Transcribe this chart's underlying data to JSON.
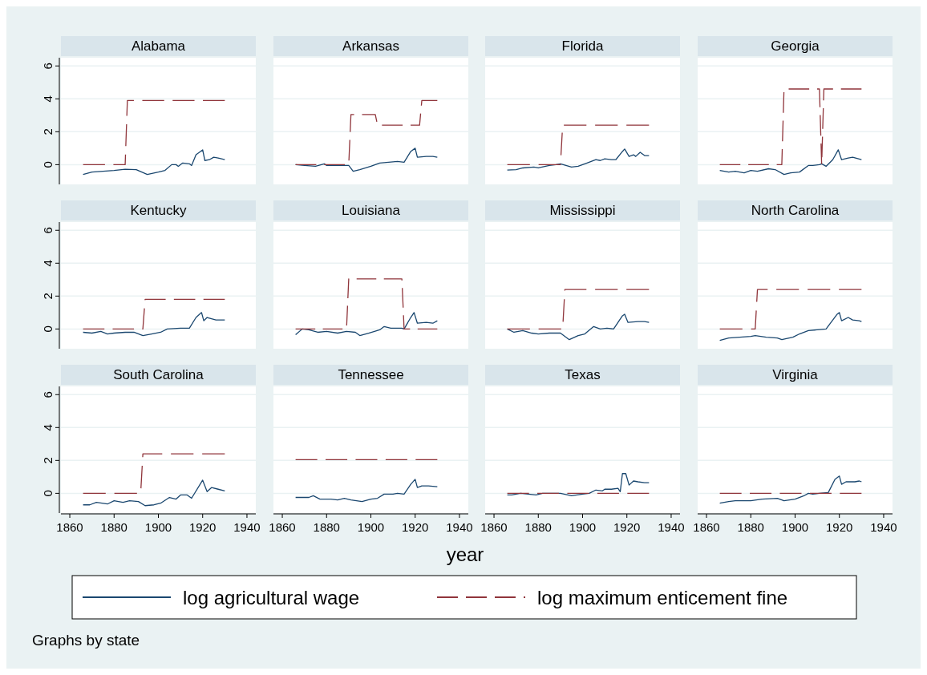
{
  "chart_data": [
    {
      "type": "line",
      "title": "Alabama",
      "legend": "bottom",
      "annotations": [
        "Graphs by state"
      ],
      "xlim": [
        1856,
        1944
      ],
      "xticks": [
        1860,
        1880,
        1900,
        1920,
        1940
      ],
      "ylim": [
        -1.2,
        6.5
      ],
      "yticks": [
        0,
        2,
        4,
        6
      ],
      "grid": "y",
      "tick_labels": "y",
      "series": [
        {
          "name": "log agricultural wage",
          "color": "#1a476f",
          "line_style": "solid",
          "x": [
            1866,
            1870,
            1875,
            1880,
            1885,
            1890,
            1895,
            1900,
            1903,
            1906,
            1908,
            1909,
            1911,
            1914,
            1915,
            1917,
            1920,
            1921,
            1923,
            1925,
            1927,
            1930
          ],
          "values": [
            -0.6,
            -0.45,
            -0.4,
            -0.35,
            -0.28,
            -0.3,
            -0.6,
            -0.45,
            -0.35,
            0,
            0,
            -0.1,
            0.1,
            0.05,
            -0.05,
            0.6,
            0.9,
            0.25,
            0.3,
            0.45,
            0.4,
            0.3
          ]
        },
        {
          "name": "log maximum enticement fine",
          "color": "#90353b",
          "line_style": "dashed",
          "x": [
            1866,
            1885,
            1886,
            1930
          ],
          "values": [
            0,
            0,
            3.9,
            3.9
          ]
        }
      ]
    },
    {
      "type": "line",
      "title": "Arkansas",
      "xlim": [
        1856,
        1944
      ],
      "xticks": [
        1860,
        1880,
        1900,
        1920,
        1940
      ],
      "ylim": [
        -1.2,
        6.5
      ],
      "yticks": [
        0,
        2,
        4,
        6
      ],
      "grid": "y",
      "tick_labels": false,
      "series": [
        {
          "name": "log agricultural wage",
          "color": "#1a476f",
          "line_style": "solid",
          "x": [
            1866,
            1870,
            1875,
            1879,
            1880,
            1885,
            1890,
            1892,
            1895,
            1900,
            1904,
            1908,
            1912,
            1915,
            1918,
            1920,
            1921,
            1925,
            1928,
            1930
          ],
          "values": [
            0,
            -0.05,
            -0.1,
            0.05,
            -0.05,
            -0.05,
            -0.05,
            -0.4,
            -0.3,
            -0.1,
            0.1,
            0.15,
            0.2,
            0.15,
            0.8,
            1.0,
            0.45,
            0.5,
            0.5,
            0.45
          ]
        },
        {
          "name": "log maximum enticement fine",
          "color": "#90353b",
          "line_style": "dashed",
          "x": [
            1866,
            1890,
            1891,
            1902,
            1903,
            1922,
            1923,
            1930
          ],
          "values": [
            0,
            0,
            3.05,
            3.05,
            2.4,
            2.4,
            3.9,
            3.9
          ]
        }
      ]
    },
    {
      "type": "line",
      "title": "Florida",
      "xlim": [
        1856,
        1944
      ],
      "xticks": [
        1860,
        1880,
        1900,
        1920,
        1940
      ],
      "ylim": [
        -1.2,
        6.5
      ],
      "yticks": [
        0,
        2,
        4,
        6
      ],
      "grid": "y",
      "tick_labels": false,
      "series": [
        {
          "name": "log agricultural wage",
          "color": "#1a476f",
          "line_style": "solid",
          "x": [
            1866,
            1870,
            1873,
            1878,
            1880,
            1885,
            1888,
            1890,
            1895,
            1898,
            1902,
            1906,
            1908,
            1910,
            1913,
            1915,
            1918,
            1919,
            1921,
            1923,
            1924,
            1926,
            1928,
            1930
          ],
          "values": [
            -0.33,
            -0.3,
            -0.2,
            -0.15,
            -0.2,
            -0.05,
            0,
            0.05,
            -0.15,
            -0.1,
            0.1,
            0.3,
            0.25,
            0.35,
            0.3,
            0.3,
            0.8,
            0.95,
            0.5,
            0.6,
            0.5,
            0.75,
            0.55,
            0.55
          ]
        },
        {
          "name": "log maximum enticement fine",
          "color": "#90353b",
          "line_style": "dashed",
          "x": [
            1866,
            1890,
            1891,
            1930
          ],
          "values": [
            0,
            0,
            2.4,
            2.4
          ]
        }
      ]
    },
    {
      "type": "line",
      "title": "Georgia",
      "xlim": [
        1856,
        1944
      ],
      "xticks": [
        1860,
        1880,
        1900,
        1920,
        1940
      ],
      "ylim": [
        -1.2,
        6.5
      ],
      "yticks": [
        0,
        2,
        4,
        6
      ],
      "grid": "y",
      "tick_labels": false,
      "series": [
        {
          "name": "log agricultural wage",
          "color": "#1a476f",
          "line_style": "solid",
          "x": [
            1866,
            1870,
            1873,
            1877,
            1880,
            1883,
            1888,
            1891,
            1895,
            1898,
            1902,
            1906,
            1908,
            1911,
            1912,
            1914,
            1917,
            1919.5,
            1921,
            1924,
            1926,
            1930
          ],
          "values": [
            -0.35,
            -0.45,
            -0.4,
            -0.5,
            -0.35,
            -0.4,
            -0.25,
            -0.3,
            -0.6,
            -0.5,
            -0.45,
            -0.05,
            -0.05,
            0,
            0.05,
            -0.1,
            0.3,
            0.9,
            0.3,
            0.4,
            0.45,
            0.3
          ]
        },
        {
          "name": "log maximum enticement fine",
          "color": "#90353b",
          "line_style": "dashed",
          "x": [
            1866,
            1894,
            1895,
            1911,
            1912,
            1913,
            1930
          ],
          "values": [
            0,
            0,
            4.6,
            4.6,
            0,
            4.6,
            4.6
          ]
        }
      ]
    },
    {
      "type": "line",
      "title": "Kentucky",
      "xlim": [
        1856,
        1944
      ],
      "xticks": [
        1860,
        1880,
        1900,
        1920,
        1940
      ],
      "ylim": [
        -1.2,
        6.5
      ],
      "yticks": [
        0,
        2,
        4,
        6
      ],
      "grid": "y",
      "tick_labels": "y",
      "series": [
        {
          "name": "log agricultural wage",
          "color": "#1a476f",
          "line_style": "solid",
          "x": [
            1866,
            1870,
            1874,
            1877,
            1880,
            1885,
            1889,
            1893,
            1897,
            1901,
            1904,
            1910,
            1914,
            1917,
            1919.5,
            1920.5,
            1922,
            1926,
            1930
          ],
          "values": [
            -0.2,
            -0.25,
            -0.15,
            -0.3,
            -0.25,
            -0.2,
            -0.2,
            -0.4,
            -0.3,
            -0.2,
            0,
            0.05,
            0.05,
            0.7,
            1.0,
            0.5,
            0.7,
            0.55,
            0.55
          ]
        },
        {
          "name": "log maximum enticement fine",
          "color": "#90353b",
          "line_style": "dashed",
          "x": [
            1866,
            1893,
            1894,
            1930
          ],
          "values": [
            0,
            0,
            1.8,
            1.8
          ]
        }
      ]
    },
    {
      "type": "line",
      "title": "Louisiana",
      "xlim": [
        1856,
        1944
      ],
      "xticks": [
        1860,
        1880,
        1900,
        1920,
        1940
      ],
      "ylim": [
        -1.2,
        6.5
      ],
      "yticks": [
        0,
        2,
        4,
        6
      ],
      "grid": "y",
      "tick_labels": false,
      "series": [
        {
          "name": "log agricultural wage",
          "color": "#1a476f",
          "line_style": "solid",
          "x": [
            1866,
            1869,
            1872,
            1876,
            1880,
            1885,
            1889,
            1893,
            1895,
            1899,
            1904,
            1906,
            1909,
            1914,
            1915,
            1918,
            1919.5,
            1921,
            1925,
            1928,
            1930
          ],
          "values": [
            -0.35,
            0,
            -0.05,
            -0.2,
            -0.15,
            -0.25,
            -0.15,
            -0.2,
            -0.4,
            -0.25,
            -0.05,
            0.15,
            0.05,
            0.05,
            0,
            0.7,
            1.0,
            0.35,
            0.4,
            0.35,
            0.5
          ]
        },
        {
          "name": "log maximum enticement fine",
          "color": "#90353b",
          "line_style": "dashed",
          "x": [
            1866,
            1889,
            1890,
            1914,
            1915,
            1930
          ],
          "values": [
            0,
            0,
            3.05,
            3.05,
            0,
            0
          ]
        }
      ]
    },
    {
      "type": "line",
      "title": "Mississippi",
      "xlim": [
        1856,
        1944
      ],
      "xticks": [
        1860,
        1880,
        1900,
        1920,
        1940
      ],
      "ylim": [
        -1.2,
        6.5
      ],
      "yticks": [
        0,
        2,
        4,
        6
      ],
      "grid": "y",
      "tick_labels": false,
      "series": [
        {
          "name": "log agricultural wage",
          "color": "#1a476f",
          "line_style": "solid",
          "x": [
            1866,
            1869,
            1873,
            1877,
            1880,
            1885,
            1890,
            1894,
            1898,
            1901,
            1905,
            1908,
            1911,
            1914,
            1918,
            1919,
            1920.5,
            1925,
            1928,
            1930
          ],
          "values": [
            0,
            -0.2,
            -0.1,
            -0.25,
            -0.3,
            -0.25,
            -0.25,
            -0.65,
            -0.4,
            -0.3,
            0.15,
            0,
            0.05,
            0,
            0.8,
            0.9,
            0.4,
            0.45,
            0.45,
            0.4
          ]
        },
        {
          "name": "log maximum enticement fine",
          "color": "#90353b",
          "line_style": "dashed",
          "x": [
            1866,
            1891,
            1892,
            1930
          ],
          "values": [
            0,
            0,
            2.4,
            2.4
          ]
        }
      ]
    },
    {
      "type": "line",
      "title": "North Carolina",
      "xlim": [
        1856,
        1944
      ],
      "xticks": [
        1860,
        1880,
        1900,
        1920,
        1940
      ],
      "ylim": [
        -1.2,
        6.5
      ],
      "yticks": [
        0,
        2,
        4,
        6
      ],
      "grid": "y",
      "tick_labels": false,
      "series": [
        {
          "name": "log agricultural wage",
          "color": "#1a476f",
          "line_style": "solid",
          "x": [
            1866,
            1870,
            1875,
            1880,
            1882,
            1887,
            1892,
            1894,
            1899,
            1902,
            1906,
            1910,
            1914,
            1919,
            1920,
            1921,
            1924,
            1926,
            1929,
            1930
          ],
          "values": [
            -0.7,
            -0.55,
            -0.5,
            -0.45,
            -0.4,
            -0.5,
            -0.55,
            -0.65,
            -0.5,
            -0.3,
            -0.1,
            -0.05,
            0,
            0.9,
            1.0,
            0.5,
            0.7,
            0.55,
            0.5,
            0.45
          ]
        },
        {
          "name": "log maximum enticement fine",
          "color": "#90353b",
          "line_style": "dashed",
          "x": [
            1866,
            1882,
            1883,
            1930
          ],
          "values": [
            0,
            0,
            2.4,
            2.4
          ]
        }
      ]
    },
    {
      "type": "line",
      "title": "South Carolina",
      "xlim": [
        1856,
        1944
      ],
      "xticks": [
        1860,
        1880,
        1900,
        1920,
        1940
      ],
      "ylim": [
        -1.2,
        6.5
      ],
      "yticks": [
        0,
        2,
        4,
        6
      ],
      "grid": "y",
      "series": [
        {
          "name": "log agricultural wage",
          "color": "#1a476f",
          "line_style": "solid",
          "x": [
            1866,
            1869,
            1872,
            1877,
            1880,
            1884,
            1887,
            1891,
            1894,
            1898,
            1901,
            1905,
            1908,
            1910,
            1913,
            1915,
            1920,
            1922,
            1924,
            1927,
            1930
          ],
          "values": [
            -0.7,
            -0.7,
            -0.55,
            -0.65,
            -0.45,
            -0.55,
            -0.45,
            -0.5,
            -0.75,
            -0.7,
            -0.6,
            -0.25,
            -0.35,
            -0.1,
            -0.1,
            -0.3,
            0.8,
            0.1,
            0.35,
            0.25,
            0.15
          ]
        },
        {
          "name": "log maximum enticement fine",
          "color": "#90353b",
          "line_style": "dashed",
          "x": [
            1866,
            1892,
            1893,
            1930
          ],
          "values": [
            0,
            0,
            2.4,
            2.4
          ]
        }
      ]
    },
    {
      "type": "line",
      "title": "Tennessee",
      "xlabel": "year",
      "xlim": [
        1856,
        1944
      ],
      "xticks": [
        1860,
        1880,
        1900,
        1920,
        1940
      ],
      "ylim": [
        -1.2,
        6.5
      ],
      "yticks": [
        0,
        2,
        4,
        6
      ],
      "grid": "y",
      "tick_labels": "x",
      "series": [
        {
          "name": "log agricultural wage",
          "color": "#1a476f",
          "line_style": "solid",
          "x": [
            1866,
            1872,
            1874,
            1877,
            1882,
            1885,
            1888,
            1891,
            1896,
            1900,
            1903,
            1906,
            1910,
            1912,
            1915,
            1918,
            1920,
            1921,
            1923,
            1926,
            1930
          ],
          "values": [
            -0.25,
            -0.25,
            -0.15,
            -0.35,
            -0.35,
            -0.4,
            -0.3,
            -0.4,
            -0.5,
            -0.35,
            -0.3,
            -0.05,
            -0.05,
            0,
            -0.05,
            0.55,
            0.85,
            0.35,
            0.45,
            0.45,
            0.4
          ]
        },
        {
          "name": "log maximum enticement fine",
          "color": "#90353b",
          "line_style": "dashed",
          "x": [
            1866,
            1930
          ],
          "values": [
            2.05,
            2.05
          ]
        }
      ]
    },
    {
      "type": "line",
      "title": "Texas",
      "xlim": [
        1856,
        1944
      ],
      "xticks": [
        1860,
        1880,
        1900,
        1920,
        1940
      ],
      "ylim": [
        -1.2,
        6.5
      ],
      "yticks": [
        0,
        2,
        4,
        6
      ],
      "grid": "y",
      "tick_labels": "x",
      "series": [
        {
          "name": "log agricultural wage",
          "color": "#1a476f",
          "line_style": "solid",
          "x": [
            1866,
            1868,
            1872,
            1879,
            1882,
            1890,
            1895,
            1900,
            1903,
            1906,
            1909,
            1910,
            1913,
            1916,
            1917,
            1918,
            1919.5,
            1921,
            1923,
            1925,
            1928,
            1930
          ],
          "values": [
            -0.1,
            -0.1,
            0,
            -0.1,
            0,
            0,
            -0.15,
            -0.05,
            0,
            0.2,
            0.15,
            0.25,
            0.25,
            0.3,
            0.1,
            1.2,
            1.2,
            0.5,
            0.75,
            0.7,
            0.65,
            0.65
          ]
        },
        {
          "name": "log maximum enticement fine",
          "color": "#90353b",
          "line_style": "dashed",
          "x": [
            1866,
            1930
          ],
          "values": [
            0,
            0
          ]
        }
      ]
    },
    {
      "type": "line",
      "title": "Virginia",
      "xlim": [
        1856,
        1944
      ],
      "xticks": [
        1860,
        1880,
        1900,
        1920,
        1940
      ],
      "ylim": [
        -1.2,
        6.5
      ],
      "yticks": [
        0,
        2,
        4,
        6
      ],
      "grid": "y",
      "tick_labels": "x",
      "series": [
        {
          "name": "log agricultural wage",
          "color": "#1a476f",
          "line_style": "solid",
          "x": [
            1866,
            1870,
            1873,
            1880,
            1885,
            1892,
            1895,
            1900,
            1904,
            1906,
            1908,
            1911,
            1915,
            1918,
            1920,
            1921,
            1923,
            1927,
            1929,
            1930
          ],
          "values": [
            -0.6,
            -0.5,
            -0.45,
            -0.45,
            -0.35,
            -0.3,
            -0.45,
            -0.35,
            -0.15,
            0,
            -0.05,
            0,
            0.05,
            0.85,
            1.05,
            0.55,
            0.7,
            0.7,
            0.75,
            0.7
          ]
        },
        {
          "name": "log maximum enticement fine",
          "color": "#90353b",
          "line_style": "dashed",
          "x": [
            1866,
            1930
          ],
          "values": [
            0,
            0
          ]
        }
      ]
    }
  ]
}
